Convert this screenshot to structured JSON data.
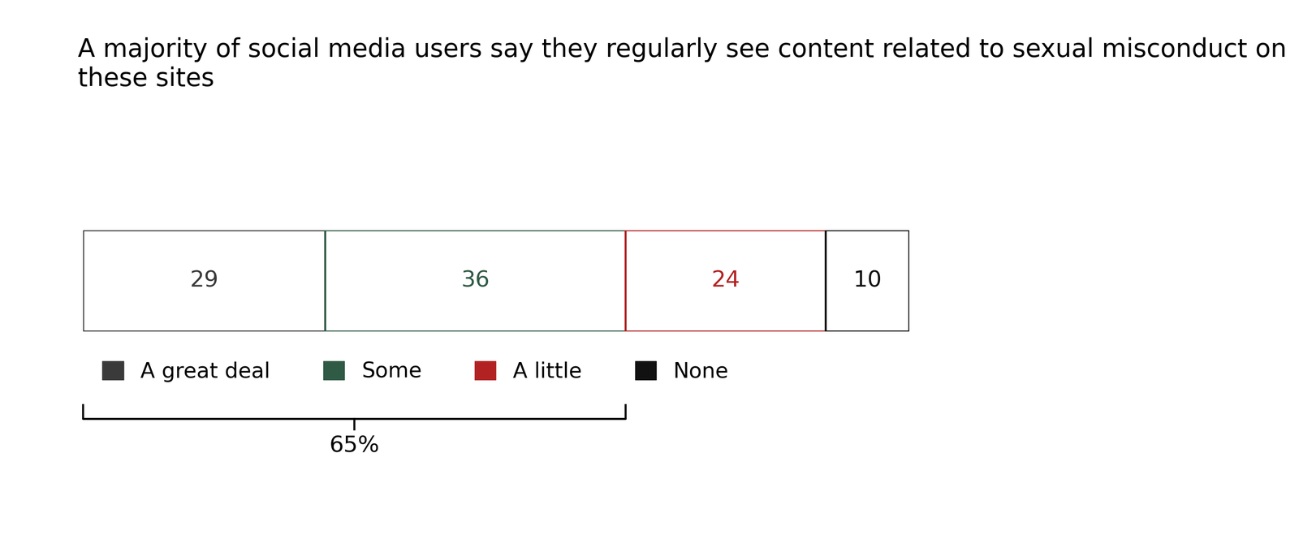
{
  "chart_data": {
    "type": "bar",
    "title": "A majority of social media users say they regularly see content related to sexual misconduct on these sites",
    "orientation": "horizontal",
    "stacked": true,
    "data_labels": true,
    "tick_labels": false,
    "legend": "upper left",
    "categories": [
      null
    ],
    "series": [
      {
        "name": "A great deal",
        "color": "#3a3a3a",
        "values": [
          29
        ]
      },
      {
        "name": "Some",
        "color": "#2f5a45",
        "values": [
          36
        ]
      },
      {
        "name": "A little",
        "color": "#b22222",
        "values": [
          24
        ]
      },
      {
        "name": "None",
        "color": "#111111",
        "values": [
          10
        ]
      }
    ],
    "bracket": {
      "value": 65,
      "label": "65%"
    }
  }
}
